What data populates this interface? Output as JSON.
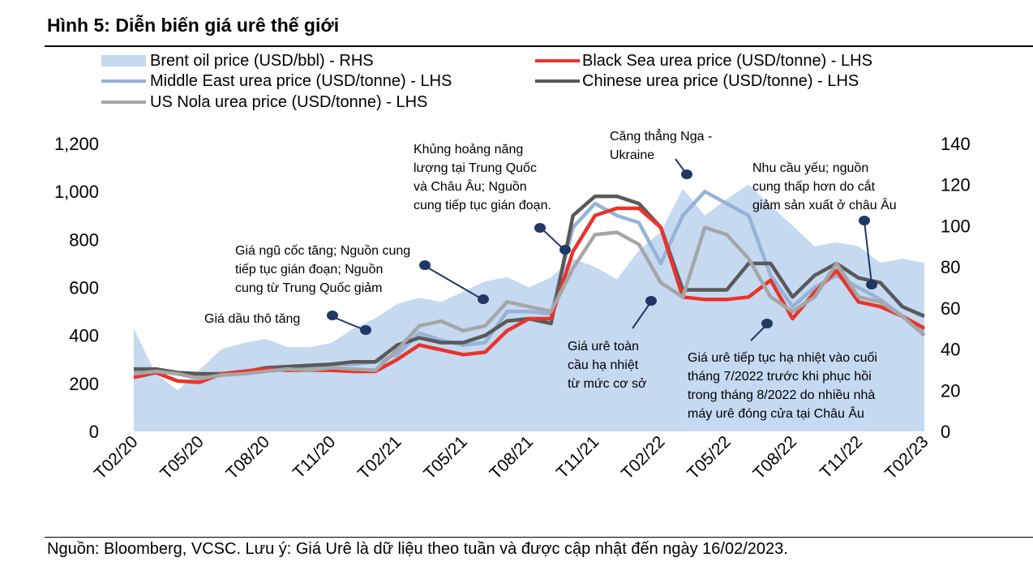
{
  "figure": {
    "title": "Hình 5: Diễn biến giá urê thế giới",
    "footnote": "Nguồn: Bloomberg, VCSC. Lưu ý: Giá Urê là dữ liệu theo tuần và được cập nhật đến ngày 16/02/2023."
  },
  "colors": {
    "brent": "#c5d9f1",
    "black_sea": "#e8342b",
    "middle_east": "#95b3d7",
    "chinese": "#595959",
    "us_nola": "#a6a6a6",
    "annotation_marker": "#1f3864"
  },
  "chart_data": {
    "type": "line",
    "title": "",
    "xlabel": "",
    "ylabel": "",
    "ylim": [
      0,
      1200
    ],
    "y2lim": [
      0,
      140
    ],
    "yticks": [
      "0",
      "200",
      "400",
      "600",
      "800",
      "1,000",
      "1,200"
    ],
    "y2ticks": [
      "0",
      "20",
      "40",
      "60",
      "80",
      "100",
      "120",
      "140"
    ],
    "x_tick_labels": [
      "T02/20",
      "T05/20",
      "T08/20",
      "T11/20",
      "T02/21",
      "T05/21",
      "T08/21",
      "T11/21",
      "T02/22",
      "T05/22",
      "T08/22",
      "T11/22",
      "T02/23"
    ],
    "x": [
      "T02/20",
      "T03/20",
      "T04/20",
      "T05/20",
      "T06/20",
      "T07/20",
      "T08/20",
      "T09/20",
      "T10/20",
      "T11/20",
      "T12/20",
      "T01/21",
      "T02/21",
      "T03/21",
      "T04/21",
      "T05/21",
      "T06/21",
      "T07/21",
      "T08/21",
      "T09/21",
      "T10/21",
      "T11/21",
      "T12/21",
      "T01/22",
      "T02/22",
      "T03/22",
      "T04/22",
      "T05/22",
      "T06/22",
      "T07/22",
      "T08/22",
      "T09/22",
      "T10/22",
      "T11/22",
      "T12/22",
      "T01/23",
      "T02/23"
    ],
    "legend_position": "top",
    "series": [
      {
        "name": "Brent oil price (USD/bbl) - RHS",
        "axis": "right",
        "kind": "area",
        "values": [
          50,
          28,
          20,
          30,
          40,
          43,
          45,
          41,
          41,
          43,
          50,
          55,
          62,
          65,
          63,
          68,
          73,
          75,
          70,
          75,
          84,
          80,
          74,
          88,
          97,
          118,
          105,
          113,
          120,
          110,
          100,
          90,
          92,
          90,
          82,
          84,
          82
        ]
      },
      {
        "name": "Black Sea urea price (USD/tonne) - LHS",
        "axis": "left",
        "kind": "line",
        "values": [
          225,
          245,
          210,
          205,
          240,
          250,
          260,
          255,
          255,
          255,
          250,
          250,
          300,
          360,
          340,
          320,
          330,
          420,
          470,
          470,
          750,
          900,
          930,
          930,
          850,
          560,
          550,
          550,
          560,
          630,
          470,
          580,
          670,
          540,
          520,
          480,
          430
        ]
      },
      {
        "name": "Middle East urea price (USD/tonne) - LHS",
        "axis": "left",
        "kind": "line",
        "values": [
          250,
          260,
          240,
          235,
          240,
          250,
          265,
          265,
          265,
          280,
          280,
          290,
          320,
          410,
          380,
          360,
          370,
          500,
          500,
          490,
          850,
          950,
          900,
          870,
          700,
          900,
          1000,
          950,
          900,
          650,
          520,
          600,
          650,
          600,
          550,
          480,
          420
        ]
      },
      {
        "name": "Chinese urea price (USD/tonne) - LHS",
        "axis": "left",
        "kind": "line",
        "values": [
          260,
          260,
          245,
          240,
          240,
          245,
          265,
          270,
          275,
          280,
          290,
          290,
          360,
          390,
          370,
          370,
          400,
          460,
          470,
          450,
          900,
          980,
          980,
          950,
          850,
          590,
          590,
          590,
          700,
          700,
          560,
          650,
          700,
          640,
          620,
          520,
          480
        ]
      },
      {
        "name": "US Nola urea price (USD/tonne) - LHS",
        "axis": "left",
        "kind": "line",
        "values": [
          240,
          250,
          240,
          220,
          235,
          240,
          250,
          260,
          255,
          265,
          260,
          255,
          340,
          440,
          460,
          420,
          440,
          540,
          520,
          500,
          680,
          820,
          830,
          780,
          620,
          560,
          850,
          820,
          720,
          560,
          500,
          560,
          700,
          560,
          540,
          480,
          400
        ]
      }
    ]
  },
  "annotations": [
    {
      "lines": [
        "Giá dầu thô tăng"
      ]
    },
    {
      "lines": [
        "Giá ngũ cốc tăng; Nguồn cung",
        "tiếp tục gián đoạn; Nguồn",
        "cung từ Trung Quốc giảm"
      ]
    },
    {
      "lines": [
        "Khủng hoảng năng",
        "lượng tại Trung Quốc",
        "và Châu Âu; Nguồn",
        "cung tiếp tục gián đoạn."
      ]
    },
    {
      "lines": [
        "Căng thẳng Nga -",
        "Ukraine"
      ]
    },
    {
      "lines": [
        "Nhu cầu yếu; nguồn",
        "cung thấp hơn do cắt",
        "giảm sản xuất ở châu Âu"
      ]
    },
    {
      "lines": [
        "Giá urê toàn",
        "cầu hạ nhiệt",
        "từ mức cơ sở"
      ]
    },
    {
      "lines": [
        "Giá urê tiếp tục hạ nhiệt vào cuối",
        "tháng 7/2022 trước khi phục hồi",
        "trong tháng 8/2022 do nhiều nhà",
        "máy urê đóng cửa tại Châu Âu"
      ]
    }
  ]
}
